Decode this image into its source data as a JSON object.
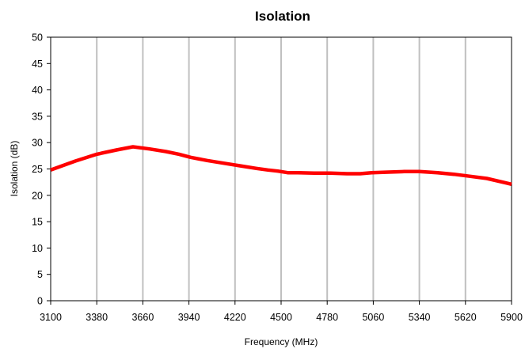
{
  "chart_data": {
    "type": "line",
    "title": "Isolation",
    "xlabel": "Frequency (MHz)",
    "ylabel": "Isolation (dB)",
    "xlim": [
      3100,
      5900
    ],
    "ylim": [
      0,
      50
    ],
    "x_ticks": [
      "3100",
      "3380",
      "3660",
      "3940",
      "4220",
      "4500",
      "4780",
      "5060",
      "5340",
      "5620",
      "5900"
    ],
    "y_ticks": [
      "0",
      "5",
      "10",
      "15",
      "20",
      "25",
      "30",
      "35",
      "40",
      "45",
      "50"
    ],
    "grid": {
      "vertical": true,
      "horizontal": false
    },
    "legend": "none",
    "series": [
      {
        "color": "#ff0000",
        "x": [
          3100,
          3250,
          3380,
          3500,
          3600,
          3700,
          3800,
          3880,
          3950,
          4050,
          4150,
          4250,
          4350,
          4420,
          4480,
          4540,
          4600,
          4700,
          4800,
          4900,
          4980,
          5050,
          5150,
          5250,
          5340,
          5450,
          5550,
          5650,
          5750,
          5900
        ],
        "y": [
          24.8,
          26.5,
          27.8,
          28.6,
          29.2,
          28.8,
          28.3,
          27.8,
          27.2,
          26.6,
          26.1,
          25.6,
          25.1,
          24.8,
          24.6,
          24.3,
          24.3,
          24.2,
          24.2,
          24.1,
          24.1,
          24.3,
          24.4,
          24.5,
          24.5,
          24.3,
          24.0,
          23.6,
          23.2,
          22.1
        ]
      }
    ]
  },
  "colors": {
    "line": "#ff0000",
    "grid": "#c0c0c0",
    "axis": "#000000",
    "background": "#ffffff"
  }
}
